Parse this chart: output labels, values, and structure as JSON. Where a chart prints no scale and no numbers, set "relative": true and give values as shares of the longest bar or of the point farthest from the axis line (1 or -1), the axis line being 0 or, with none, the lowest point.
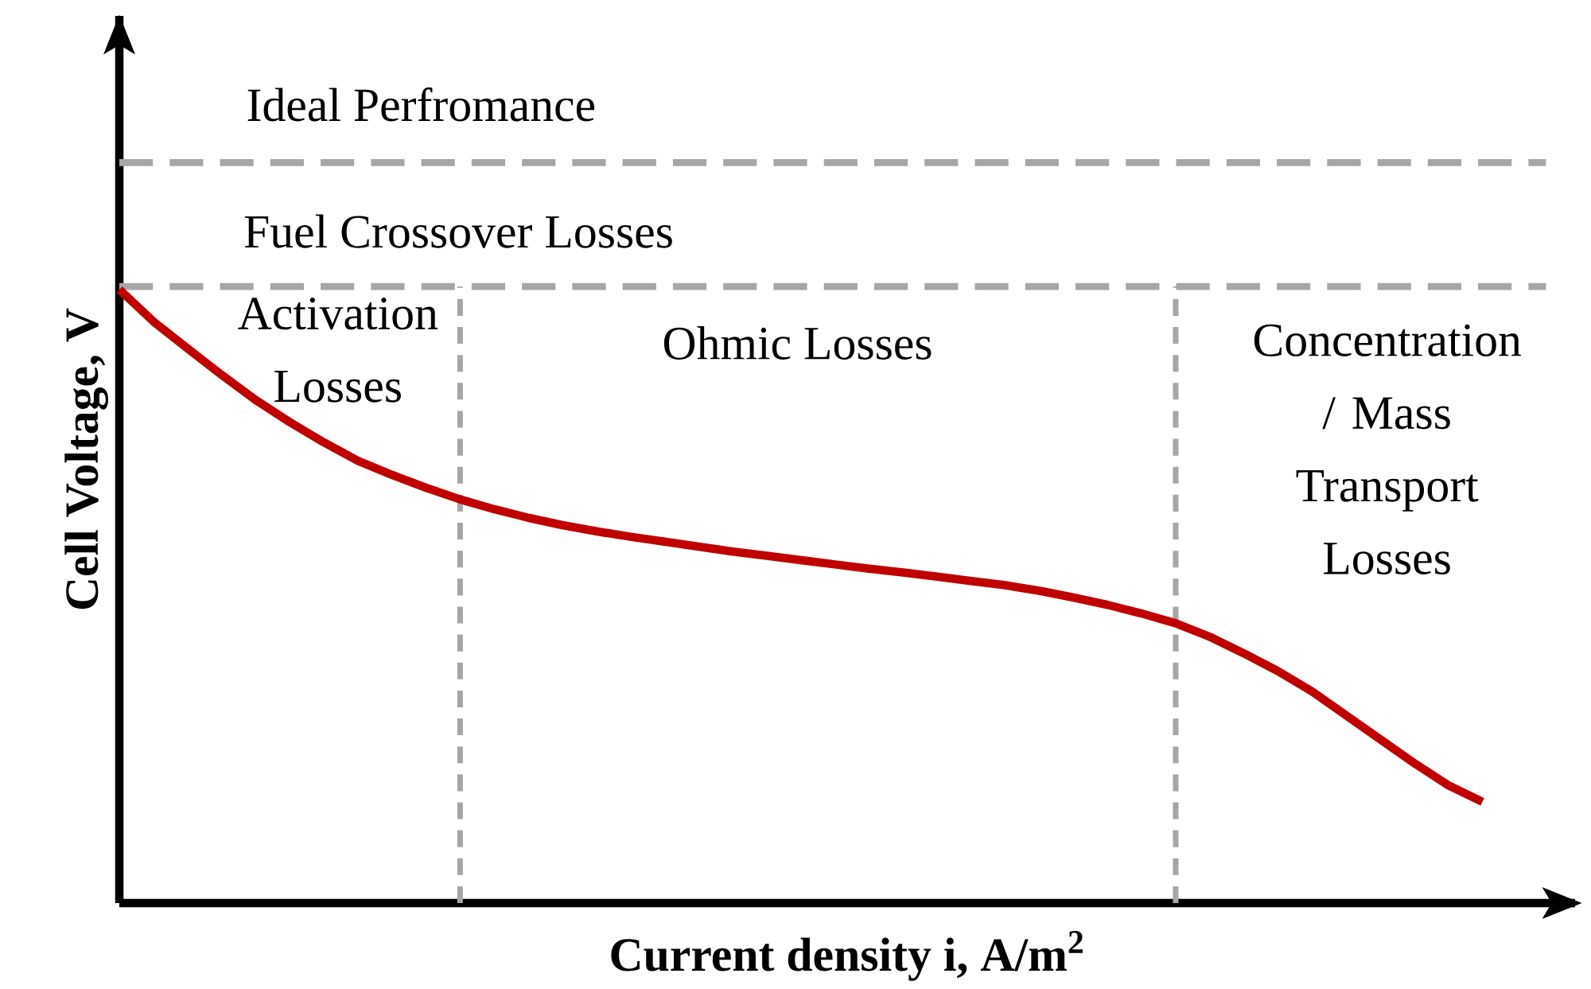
{
  "chart_data": {
    "type": "line",
    "relative": true,
    "xlabel": "Current density i, A/m$^{2}$",
    "ylabel": "Cell Voltage, V",
    "tick_labels": false,
    "marker": "none",
    "line_style": "solid",
    "categories": [
      null,
      null,
      null,
      null,
      null,
      null,
      null,
      null,
      null,
      null,
      null,
      null,
      null,
      null,
      null,
      null,
      null,
      null,
      null,
      null,
      null,
      null,
      null,
      null,
      null,
      null,
      null,
      null,
      null,
      null,
      null,
      null,
      null,
      null,
      null,
      null,
      null,
      null,
      null,
      null,
      null
    ],
    "series": [
      {
        "color": "#c00000",
        "values": [
          1,
          0.948,
          0.904,
          0.861,
          0.82,
          0.784,
          0.751,
          0.721,
          0.698,
          0.677,
          0.658,
          0.642,
          0.628,
          0.616,
          0.606,
          0.597,
          0.589,
          0.581,
          0.573,
          0.566,
          0.559,
          0.552,
          0.545,
          0.539,
          0.532,
          0.525,
          0.518,
          0.509,
          0.498,
          0.486,
          0.472,
          0.456,
          0.434,
          0.407,
          0.378,
          0.345,
          0.306,
          0.267,
          0.228,
          0.192,
          0.165
        ]
      }
    ],
    "ref_lines": [
      {
        "axis": "y",
        "value": 1.207,
        "color": "#a6a6a6",
        "line_style": "dashed"
      },
      {
        "axis": "y",
        "value": 1.005,
        "color": "#a6a6a6",
        "line_style": "dashed"
      }
    ],
    "annotations": [
      "Ideal Perfromance",
      "Fuel Crossover Losses",
      "Activation Losses",
      "Ohmic Losses",
      "Concentration / Mass Transport Losses"
    ]
  }
}
